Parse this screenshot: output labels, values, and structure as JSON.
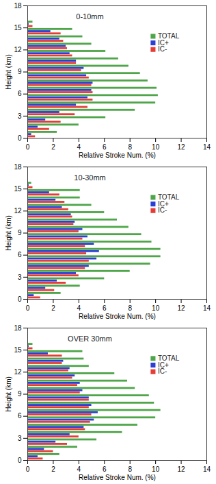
{
  "chart_data": [
    {
      "type": "bar",
      "orientation": "horizontal",
      "title": "0-10mm",
      "x_label": "Relative Stroke Num. (%)",
      "y_label": "Height (km)",
      "x": [
        0.5,
        1.5,
        2.5,
        3.5,
        4.5,
        5.5,
        6.5,
        7.5,
        8.5,
        9.5,
        10.5,
        11.5,
        12.5,
        13.5,
        14.5,
        15.5
      ],
      "series": [
        {
          "name": "TOTAL",
          "color": "#4fa64a",
          "values": [
            2.3,
            4.0,
            6.1,
            8.4,
            10.0,
            10.2,
            10.1,
            9.4,
            8.8,
            7.9,
            7.1,
            6.1,
            5.0,
            4.3,
            3.5,
            0.4
          ]
        },
        {
          "name": "IC+",
          "color": "#2b3fd4",
          "values": [
            0.3,
            0.8,
            1.4,
            2.5,
            3.8,
            4.7,
            5.0,
            5.1,
            4.6,
            4.4,
            3.8,
            3.3,
            3.0,
            2.5,
            1.8,
            0.1
          ]
        },
        {
          "name": "IC-",
          "color": "#e53d36",
          "values": [
            0.6,
            1.7,
            2.6,
            3.7,
            4.7,
            5.1,
            5.1,
            5.0,
            4.8,
            4.2,
            3.8,
            3.5,
            3.1,
            2.8,
            2.6,
            0.4
          ]
        }
      ],
      "xlim": [
        0,
        14
      ],
      "xticks": [
        0,
        2,
        4,
        6,
        8,
        10,
        12,
        14
      ],
      "ylim": [
        0,
        18
      ],
      "yticks": [
        0,
        3,
        6,
        9,
        12,
        15,
        18
      ],
      "legend": "upper right",
      "grid": false
    },
    {
      "type": "bar",
      "orientation": "horizontal",
      "title": "10-30mm",
      "x_label": "Relative Stroke Num. (%)",
      "y_label": "Height (km)",
      "x": [
        0.5,
        1.5,
        2.5,
        3.5,
        4.5,
        5.5,
        6.5,
        7.5,
        8.5,
        9.5,
        10.5,
        11.5,
        12.5,
        13.5,
        14.5,
        15.5
      ],
      "series": [
        {
          "name": "TOTAL",
          "color": "#4fa64a",
          "values": [
            2.6,
            4.1,
            6.0,
            8.0,
            9.6,
            10.4,
            10.4,
            9.7,
            8.9,
            7.9,
            7.0,
            6.0,
            5.0,
            4.1,
            4.1,
            0.3
          ]
        },
        {
          "name": "IC+",
          "color": "#2b3fd4",
          "values": [
            0.5,
            1.4,
            2.3,
            3.8,
            4.8,
            5.4,
            5.6,
            5.2,
            4.7,
            4.3,
            3.7,
            3.4,
            2.7,
            2.2,
            1.7,
            0.1
          ]
        },
        {
          "name": "IC-",
          "color": "#e53d36",
          "values": [
            1.0,
            2.1,
            3.0,
            4.0,
            4.5,
            4.8,
            4.6,
            4.5,
            4.3,
            4.0,
            3.6,
            3.5,
            3.2,
            2.9,
            2.5,
            0.4
          ]
        }
      ],
      "xlim": [
        0,
        14
      ],
      "xticks": [
        0,
        2,
        4,
        6,
        8,
        10,
        12,
        14
      ],
      "ylim": [
        0,
        18
      ],
      "yticks": [
        0,
        3,
        6,
        9,
        12,
        15,
        18
      ],
      "legend": "upper right",
      "grid": false
    },
    {
      "type": "bar",
      "orientation": "horizontal",
      "title": "OVER 30mm",
      "x_label": "Relative Stroke Num. (%)",
      "y_label": "Height (km)",
      "x": [
        0.5,
        1.5,
        2.5,
        3.5,
        4.5,
        5.5,
        6.5,
        7.5,
        8.5,
        9.5,
        10.5,
        11.5,
        12.5,
        13.5,
        14.5,
        15.5
      ],
      "series": [
        {
          "name": "TOTAL",
          "color": "#4fa64a",
          "values": [
            2.5,
            3.9,
            5.4,
            7.4,
            8.6,
            10.0,
            10.4,
            9.9,
            9.5,
            8.4,
            7.8,
            6.8,
            4.8,
            4.4,
            4.3,
            0.4
          ]
        },
        {
          "name": "IC+",
          "color": "#2b3fd4",
          "values": [
            0.8,
            1.3,
            2.2,
            3.3,
            4.4,
            5.2,
            5.5,
            5.0,
            4.8,
            4.3,
            4.1,
            3.7,
            3.3,
            2.8,
            1.6,
            0.1
          ]
        },
        {
          "name": "IC-",
          "color": "#e53d36",
          "values": [
            1.2,
            2.0,
            3.1,
            4.0,
            4.5,
            4.9,
            5.0,
            4.8,
            4.8,
            4.1,
            3.9,
            3.5,
            3.2,
            2.7,
            2.7,
            0.4
          ]
        }
      ],
      "xlim": [
        0,
        14
      ],
      "xticks": [
        0,
        2,
        4,
        6,
        8,
        10,
        12,
        14
      ],
      "ylim": [
        0,
        18
      ],
      "yticks": [
        0,
        3,
        6,
        9,
        12,
        15,
        18
      ],
      "legend": "upper right",
      "grid": false
    }
  ]
}
